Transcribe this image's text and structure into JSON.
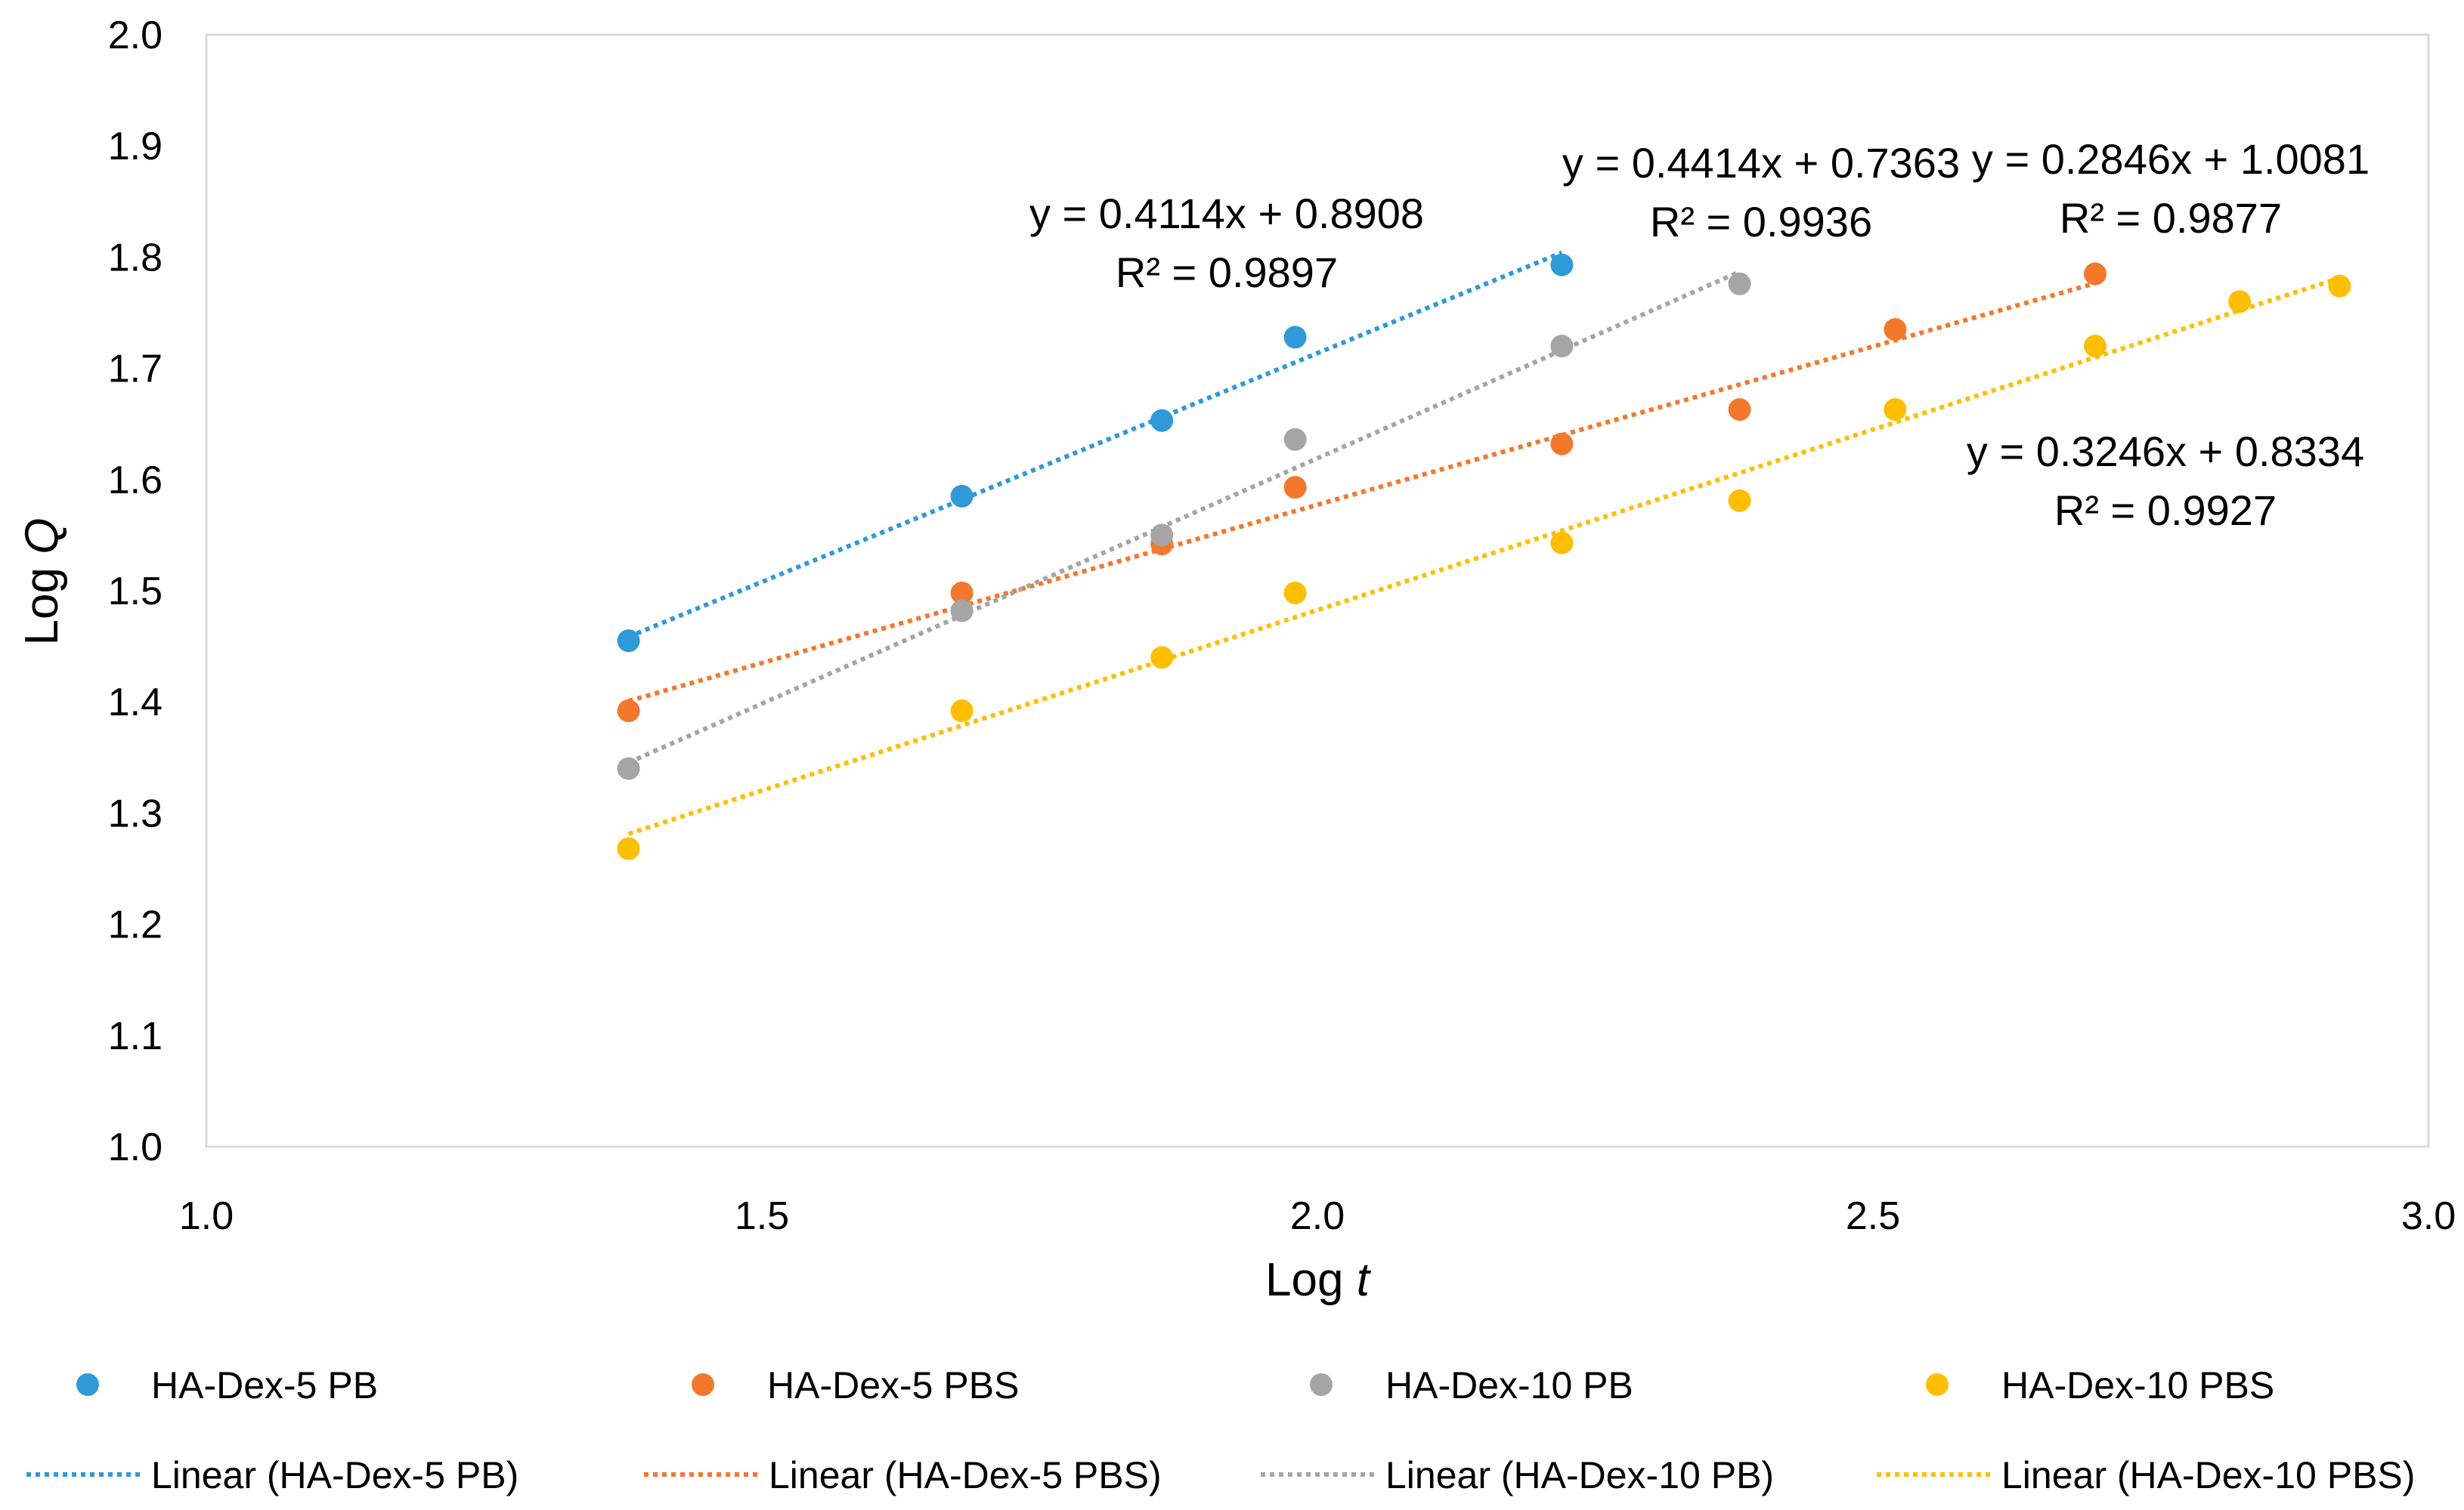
{
  "chart_data": {
    "type": "scatter",
    "title": "",
    "xlabel_prefix": "Log ",
    "xlabel_var": "t",
    "ylabel_prefix": "Log ",
    "ylabel_var": "Q",
    "xlim": [
      1.0,
      3.0
    ],
    "ylim": [
      1.0,
      2.0
    ],
    "xticks": [
      "1.0",
      "1.5",
      "2.0",
      "2.5",
      "3.0"
    ],
    "yticks": [
      "1.0",
      "1.1",
      "1.2",
      "1.3",
      "1.4",
      "1.5",
      "1.6",
      "1.7",
      "1.8",
      "1.9",
      "2.0"
    ],
    "grid": false,
    "legend_position": "bottom",
    "series": [
      {
        "name": "HA-Dex-5 PB",
        "trend_name": "Linear (HA-Dex-5 PB)",
        "color": "#2E9AD8",
        "points": [
          [
            1.38,
            1.455
          ],
          [
            1.68,
            1.585
          ],
          [
            1.86,
            1.653
          ],
          [
            1.98,
            1.728
          ],
          [
            2.22,
            1.793
          ]
        ],
        "slope": 0.4114,
        "intercept": 0.8908,
        "fit_range": [
          1.38,
          2.22
        ],
        "equation": "y = 0.4114x + 0.8908",
        "r2": "R² = 0.9897"
      },
      {
        "name": "HA-Dex-5 PBS",
        "trend_name": "Linear (HA-Dex-5 PBS)",
        "color": "#F4782C",
        "points": [
          [
            1.38,
            1.392
          ],
          [
            1.68,
            1.498
          ],
          [
            1.86,
            1.542
          ],
          [
            1.98,
            1.593
          ],
          [
            2.22,
            1.632
          ],
          [
            2.38,
            1.663
          ],
          [
            2.52,
            1.735
          ],
          [
            2.7,
            1.785
          ]
        ],
        "slope": 0.2846,
        "intercept": 1.0081,
        "fit_range": [
          1.38,
          2.7
        ],
        "equation": "y = 0.2846x + 1.0081",
        "r2": "R² = 0.9877"
      },
      {
        "name": "HA-Dex-10 PB",
        "trend_name": "Linear (HA-Dex-10 PB)",
        "color": "#A5A5A5",
        "points": [
          [
            1.38,
            1.34
          ],
          [
            1.68,
            1.482
          ],
          [
            1.86,
            1.55
          ],
          [
            1.98,
            1.636
          ],
          [
            2.22,
            1.72
          ],
          [
            2.38,
            1.776
          ]
        ],
        "slope": 0.4414,
        "intercept": 0.7363,
        "fit_range": [
          1.38,
          2.38
        ],
        "equation": "y = 0.4414x + 0.7363",
        "r2": "R² = 0.9936"
      },
      {
        "name": "HA-Dex-10 PBS",
        "trend_name": "Linear (HA-Dex-10 PBS)",
        "color": "#FEBF00",
        "points": [
          [
            1.38,
            1.268
          ],
          [
            1.68,
            1.392
          ],
          [
            1.86,
            1.44
          ],
          [
            1.98,
            1.498
          ],
          [
            2.22,
            1.543
          ],
          [
            2.38,
            1.581
          ],
          [
            2.52,
            1.663
          ],
          [
            2.7,
            1.72
          ],
          [
            2.83,
            1.76
          ],
          [
            2.92,
            1.774
          ]
        ],
        "slope": 0.3246,
        "intercept": 0.8334,
        "fit_range": [
          1.38,
          2.92
        ],
        "equation": "y = 0.3246x + 0.8334",
        "r2": "R² = 0.9927"
      }
    ]
  }
}
